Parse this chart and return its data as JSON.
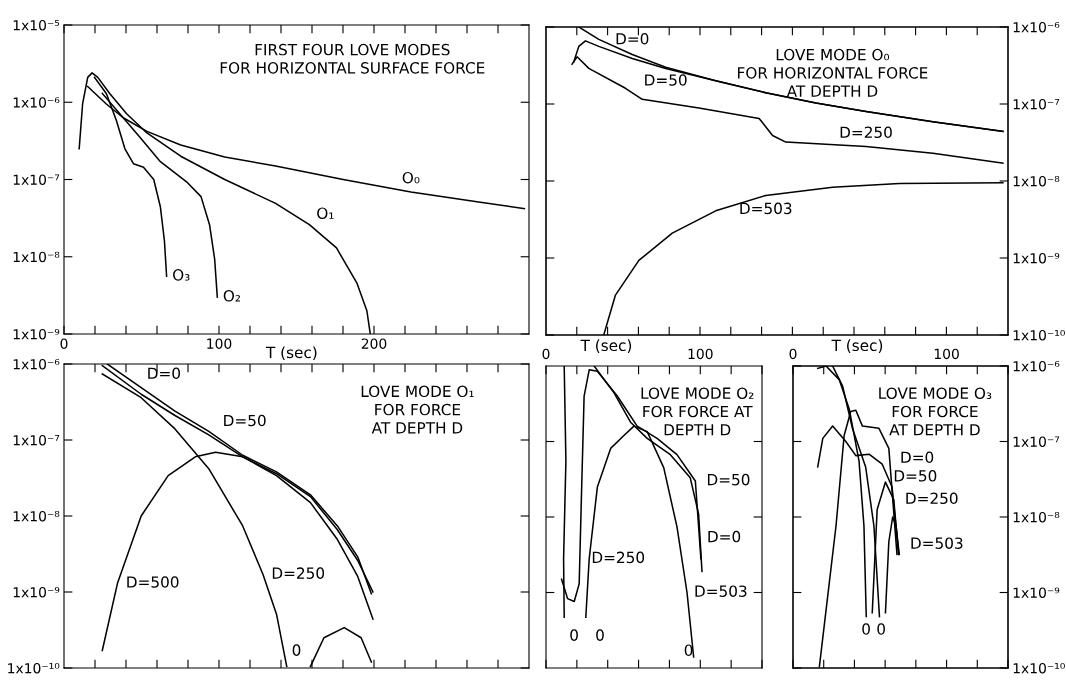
{
  "chart_data": [
    {
      "type": "line",
      "title": "FIRST FOUR LOVE MODES\nFOR HORIZONTAL SURFACE FORCE",
      "xlabel": "T (sec)",
      "log": true,
      "xlim": [
        0,
        300
      ],
      "xticks": [
        0,
        {
          "value": 20,
          "label": null
        },
        {
          "value": 40,
          "label": null
        },
        {
          "value": 60,
          "label": null
        },
        {
          "value": 80,
          "label": null
        },
        100,
        {
          "value": 120,
          "label": null
        },
        {
          "value": 140,
          "label": null
        },
        {
          "value": 160,
          "label": null
        },
        {
          "value": 180,
          "label": null
        },
        200,
        {
          "value": 220,
          "label": null
        },
        {
          "value": 240,
          "label": null
        },
        {
          "value": 260,
          "label": null
        },
        {
          "value": 280,
          "label": null
        }
      ],
      "ylim": [
        1e-09,
        1e-05
      ],
      "yticks": [
        {
          "value": 1e-09,
          "label": "1x10⁻⁹"
        },
        {
          "value": 1e-08,
          "label": "1x10⁻⁸"
        },
        {
          "value": 1e-07,
          "label": "1x10⁻⁷"
        },
        {
          "value": 1e-06,
          "label": "1x10⁻⁶"
        },
        {
          "value": 1e-05,
          "label": "1x10⁻⁵"
        }
      ],
      "series": [
        {
          "name": "O₀",
          "color": "#000000",
          "x": [
            15.3,
            27.3,
            38.2,
            53.5,
            75.3,
            103.7,
            136.5,
            180.1,
            223.8,
            267.5,
            297
          ],
          "values": [
            1.6e-06,
            9.5e-07,
            6.3e-07,
            4.2e-07,
            2.8e-07,
            1.95e-07,
            1.5e-07,
            1e-07,
            6.9e-08,
            5.1e-08,
            4.2e-08
          ]
        },
        {
          "name": "O₁",
          "color": "#000000",
          "x": [
            9.8,
            12.0,
            15.3,
            18.1,
            21.8,
            29.5,
            40.4,
            53.5,
            75.3,
            103.7,
            136.5,
            158.3,
            175.8,
            188.9,
            195.4,
            197.6
          ],
          "values": [
            2.5e-07,
            9.5e-07,
            2.1e-06,
            2.4e-06,
            2.1e-06,
            1.3e-06,
            7.1e-07,
            4e-07,
            2e-07,
            1e-07,
            4.9e-08,
            2.6e-08,
            1.3e-08,
            4.6e-09,
            2e-09,
            1e-09
          ]
        },
        {
          "name": "O₂",
          "color": "#000000",
          "x": [
            24.7,
            36.0,
            49.1,
            62.2,
            79.7,
            88.4,
            93.9,
            97.2,
            98.9
          ],
          "values": [
            1.3e-06,
            7.1e-07,
            3.5e-07,
            1.7e-07,
            9.1e-08,
            6e-08,
            2.6e-08,
            9.3e-09,
            3e-09
          ]
        },
        {
          "name": "O₃",
          "color": "#000000",
          "x": [
            19.7,
            27.3,
            33.8,
            39.3,
            44.8,
            51.3,
            57.9,
            62.2,
            64.8,
            66.2
          ],
          "values": [
            2.1e-06,
            1.3e-06,
            5.8e-07,
            2.5e-07,
            1.6e-07,
            1.44e-07,
            1e-07,
            4.4e-08,
            1.6e-08,
            5.6e-09
          ]
        }
      ]
    },
    {
      "type": "line",
      "title": "LOVE MODE O₀\nFOR HORIZONTAL FORCE\nAT DEPTH D",
      "log": "y2",
      "tick_labels": "y",
      "xlim": [
        0,
        300
      ],
      "xticks": [
        {
          "value": 20,
          "label": null
        },
        {
          "value": 40,
          "label": null
        },
        {
          "value": 60,
          "label": null
        },
        {
          "value": 80,
          "label": null
        },
        {
          "value": 100,
          "label": null
        },
        {
          "value": 120,
          "label": null
        },
        {
          "value": 140,
          "label": null
        },
        {
          "value": 160,
          "label": null
        },
        {
          "value": 180,
          "label": null
        },
        {
          "value": 200,
          "label": null
        },
        {
          "value": 220,
          "label": null
        },
        {
          "value": 240,
          "label": null
        },
        {
          "value": 260,
          "label": null
        },
        {
          "value": 280,
          "label": null
        }
      ],
      "y2lim": [
        1e-10,
        1e-06
      ],
      "y2ticks": [
        {
          "value": 1e-10,
          "label": "1x10⁻¹⁰"
        },
        {
          "value": 1e-09,
          "label": "1x10⁻⁹"
        },
        {
          "value": 1e-08,
          "label": "1x10⁻⁸"
        },
        {
          "value": 1e-07,
          "label": "1x10⁻⁷"
        },
        {
          "value": 1e-06,
          "label": "1x10⁻⁶"
        }
      ],
      "series": [
        {
          "name": "D=0",
          "color": "#000000",
          "axis": "y2",
          "x": [
            21.3,
            34.3,
            56.0,
            77.7,
            110.2,
            142.7,
            175.3,
            207.8,
            251.2,
            296.7
          ],
          "values": [
            1e-06,
            6.9e-07,
            4.4e-07,
            3e-07,
            2e-07,
            1.4e-07,
            1.03e-07,
            8e-08,
            5.9e-08,
            4.4e-08
          ]
        },
        {
          "name": "D=50",
          "color": "#000000",
          "axis": "y2",
          "x": [
            18.0,
            21.3,
            25.6,
            34.3,
            56.0,
            77.7,
            110.2,
            142.7,
            175.3,
            207.8,
            251.2,
            296.7
          ],
          "values": [
            3.5e-07,
            5.6e-07,
            6.6e-07,
            5.6e-07,
            3.9e-07,
            2.9e-07,
            2e-07,
            1.4e-07,
            1.03e-07,
            8e-08,
            5.9e-08,
            4.4e-08
          ]
        },
        {
          "name": "D=250",
          "color": "#000000",
          "axis": "y2",
          "x": [
            16.9,
            20.2,
            27.8,
            51.6,
            62.5,
            99.3,
            138.4,
            147.1,
            155.7,
            207.8,
            251.2,
            296.7
          ],
          "values": [
            3.3e-07,
            4.1e-07,
            2.9e-07,
            1.6e-07,
            1.15e-07,
            8.9e-08,
            6.5e-08,
            3.9e-08,
            3.2e-08,
            2.8e-08,
            2.3e-08,
            1.7e-08
          ]
        },
        {
          "name": "D=503",
          "color": "#000000",
          "axis": "y2",
          "x": [
            37.5,
            45.1,
            60.3,
            82.0,
            110.2,
            142.7,
            186.1,
            229.5,
            296.7
          ],
          "values": [
            1e-10,
            3.3e-10,
            9.3e-10,
            2.1e-09,
            4.1e-09,
            6.5e-09,
            8.3e-09,
            9.3e-09,
            9.5e-09
          ]
        }
      ]
    },
    {
      "type": "line",
      "title": "LOVE MODE O₁\nFOR FORCE\nAT DEPTH D",
      "log": true,
      "tick_labels": "y",
      "xlim": [
        0,
        300
      ],
      "xticks": [
        {
          "value": 20,
          "label": null
        },
        {
          "value": 40,
          "label": null
        },
        {
          "value": 60,
          "label": null
        },
        {
          "value": 80,
          "label": null
        },
        {
          "value": 100,
          "label": null
        },
        {
          "value": 120,
          "label": null
        },
        {
          "value": 140,
          "label": null
        },
        {
          "value": 160,
          "label": null
        },
        {
          "value": 180,
          "label": null
        },
        {
          "value": 200,
          "label": null
        },
        {
          "value": 220,
          "label": null
        },
        {
          "value": 240,
          "label": null
        },
        {
          "value": 260,
          "label": null
        },
        {
          "value": 280,
          "label": null
        }
      ],
      "ylim": [
        1e-10,
        1e-06
      ],
      "yticks": [
        {
          "value": 1e-10,
          "label": "1x10⁻¹⁰"
        },
        {
          "value": 1e-09,
          "label": "1x10⁻⁹"
        },
        {
          "value": 1e-08,
          "label": "1x10⁻⁸"
        },
        {
          "value": 1e-07,
          "label": "1x10⁻⁷"
        },
        {
          "value": 1e-06,
          "label": "1x10⁻⁶"
        }
      ],
      "annotations": [
        "0"
      ],
      "series": [
        {
          "name": "D=0",
          "color": "#000000",
          "x": [
            27.9,
            49.8,
            71.6,
            93.4,
            115.3,
            137.1,
            159.0,
            176.4,
            189.5,
            198.3
          ],
          "values": [
            1e-06,
            4.9e-07,
            2.4e-07,
            1.3e-07,
            6.3e-08,
            3.8e-08,
            1.9e-08,
            7.4e-09,
            2.9e-09,
            9.5e-10
          ]
        },
        {
          "name": "D=50",
          "color": "#000000",
          "x": [
            24.7,
            49.8,
            71.6,
            93.4,
            115.3,
            137.1,
            159.0,
            176.4,
            189.5,
            199.3
          ],
          "values": [
            9.5e-07,
            4e-07,
            2.1e-07,
            1.17e-07,
            6e-08,
            3.6e-08,
            1.8e-08,
            6.6e-09,
            2.6e-09,
            1e-09
          ]
        },
        {
          "name": "D=250",
          "color": "#000000",
          "x": [
            24.7,
            49.8,
            71.6,
            93.4,
            115.3,
            128.4,
            137.1,
            143.7,
            150,
            159.0,
            167.7,
            180.8,
            191.7,
            198.3
          ],
          "values": [
            7.4e-07,
            3.6e-07,
            1.4e-07,
            4.2e-08,
            7.4e-09,
            1.7e-09,
            5.1e-10,
            1.05e-10,
            null,
            1.05e-10,
            2.5e-10,
            3.4e-10,
            2.5e-10,
            1.2e-10
          ]
        },
        {
          "name": "D=500",
          "color": "#000000",
          "x": [
            24.7,
            34.5,
            49.8,
            67.2,
            84.7,
            97.8,
            115.3,
            137.1,
            159.0,
            176.4,
            189.5,
            199.3
          ],
          "values": [
            1.7e-10,
            1.3e-09,
            1e-08,
            3.4e-08,
            6e-08,
            6.9e-08,
            6e-08,
            3.4e-08,
            1.5e-08,
            4.9e-09,
            1.6e-09,
            4.4e-10
          ]
        }
      ]
    },
    {
      "type": "line",
      "title": "LOVE MODE O₂\nFOR FORCE AT\nDEPTH D",
      "log": true,
      "xlabel": "T (sec)",
      "tick_labels": "x",
      "xlim": [
        0,
        140
      ],
      "xticks": [
        0,
        {
          "value": 20,
          "label": null
        },
        {
          "value": 40,
          "label": null
        },
        {
          "value": 60,
          "label": null
        },
        {
          "value": 80,
          "label": null
        },
        100,
        {
          "value": 120,
          "label": null
        },
        {
          "value": 140,
          "label": null
        }
      ],
      "ylim": [
        1e-10,
        1e-06
      ],
      "yticks": [
        {
          "value": 1e-09,
          "label": null
        },
        {
          "value": 1e-08,
          "label": null
        },
        {
          "value": 1e-07,
          "label": null
        }
      ],
      "annotations": [
        "0",
        "0",
        "0"
      ],
      "series": [
        {
          "name": "D=0",
          "color": "#000000",
          "x": [
            31.2,
            44.1,
            54.8,
            65.6,
            80.6,
            93.5,
            98.9,
            101.1
          ],
          "values": [
            1e-06,
            4.4e-07,
            1.8e-07,
            1.1e-07,
            6.7e-08,
            3.3e-08,
            1.1e-08,
            1.9e-09
          ]
        },
        {
          "name": "D=50",
          "color": "#000000",
          "x": [
            10.1,
            14.0,
            18.3,
            21.5,
            23.0,
            24.7,
            28.0,
            33.3,
            46.2,
            59.1,
            72.0,
            84.9,
            96.8,
            100.4
          ],
          "values": [
            1.5e-09,
            8.3e-10,
            7.6e-10,
            1.3e-09,
            2e-08,
            4e-07,
            8.9e-07,
            8.5e-07,
            4e-07,
            1.6e-07,
            1.1e-07,
            6.7e-08,
            3e-08,
            2.8e-09
          ]
        },
        {
          "name": "D=250",
          "color": "#000000",
          "x": [
            11.8,
            12.9,
            11.4,
            11.8
          ],
          "values": [
            1e-06,
            5.5e-08,
            2.8e-09,
            4.7e-10
          ]
        },
        {
          "name": "D=503",
          "color": "#000000",
          "x": [
            25.8,
            28.0,
            33.3,
            41.9,
            50.5,
            57.0,
            65.6,
            76.3,
            84.9,
            91.4,
            95.7
          ],
          "values": [
            4.7e-10,
            2.8e-09,
            2.5e-08,
            8.1e-08,
            1.2e-07,
            1.6e-07,
            1.35e-07,
            4.5e-08,
            7.4e-09,
            1e-09,
            1.4e-10
          ]
        }
      ]
    },
    {
      "type": "line",
      "title": "LOVE MODE O₃\nFOR FORCE\nAT DEPTH D",
      "log": "y2",
      "xlabel": "T (sec)",
      "xlim": [
        0,
        140
      ],
      "xticks": [
        0,
        {
          "value": 20,
          "label": null
        },
        {
          "value": 40,
          "label": null
        },
        {
          "value": 60,
          "label": null
        },
        {
          "value": 80,
          "label": null
        },
        100,
        {
          "value": 120,
          "label": null
        },
        {
          "value": 140,
          "label": null
        }
      ],
      "y2lim": [
        1e-10,
        1e-06
      ],
      "y2ticks": [
        {
          "value": 1e-10,
          "label": "1x10⁻¹⁰"
        },
        {
          "value": 1e-09,
          "label": "1x10⁻⁹"
        },
        {
          "value": 1e-08,
          "label": "1x10⁻⁸"
        },
        {
          "value": 1e-07,
          "label": "1x10⁻⁷"
        },
        {
          "value": 1e-06,
          "label": "1x10⁻⁶"
        }
      ],
      "annotations": [
        "0",
        "0"
      ],
      "series": [
        {
          "name": "D=50",
          "color": "#000000",
          "axis": "y2",
          "x": [
            16.1,
            19.4,
            25.8,
            34.4,
            40.9,
            49.5,
            58.1,
            64.5,
            68.8
          ],
          "values": [
            4.6e-08,
            1.1e-07,
            1.6e-07,
            1e-07,
            6.5e-08,
            6.8e-08,
            5e-08,
            2.5e-08,
            3.2e-09
          ]
        },
        {
          "name": "D=0",
          "color": "#000000",
          "axis": "y2",
          "x": [
            17.2,
            28.0,
            33.3,
            37.6,
            40.9,
            45.2,
            55.9,
            62.4,
            67.7
          ],
          "values": [
            1.05e-10,
            7.6e-09,
            1.2e-07,
            2.5e-07,
            2.6e-07,
            1.6e-07,
            1.5e-07,
            8.1e-08,
            3.2e-09
          ]
        },
        {
          "name": "D=250",
          "color": "#000000",
          "axis": "y2",
          "x": [
            16.1,
            21.5,
            30.1,
            36.6,
            43.0,
            46.2,
            47.7,
            49.5,
            51.6,
            54.8,
            60.2,
            65.6,
            68.8
          ],
          "values": [
            9.3e-07,
            1e-06,
            6.6e-07,
            2.7e-07,
            5.5e-08,
            7.6e-09,
            4.8e-10,
            null,
            5.4e-10,
            1.26e-08,
            2.9e-08,
            1.7e-08,
            3.2e-09
          ]
        },
        {
          "name": "D=503",
          "color": "#000000",
          "axis": "y2",
          "x": [
            25.8,
            32.3,
            38.7,
            47.3,
            52.7,
            56.3,
            58.2,
            60.2,
            62.4,
            64.9,
            67.1,
            69.2
          ],
          "values": [
            1e-06,
            5.4e-07,
            1.5e-07,
            4.6e-08,
            7.6e-09,
            4.8e-10,
            null,
            5.4e-10,
            4.7e-09,
            1e-08,
            7.6e-09,
            3.2e-09
          ]
        }
      ]
    }
  ]
}
